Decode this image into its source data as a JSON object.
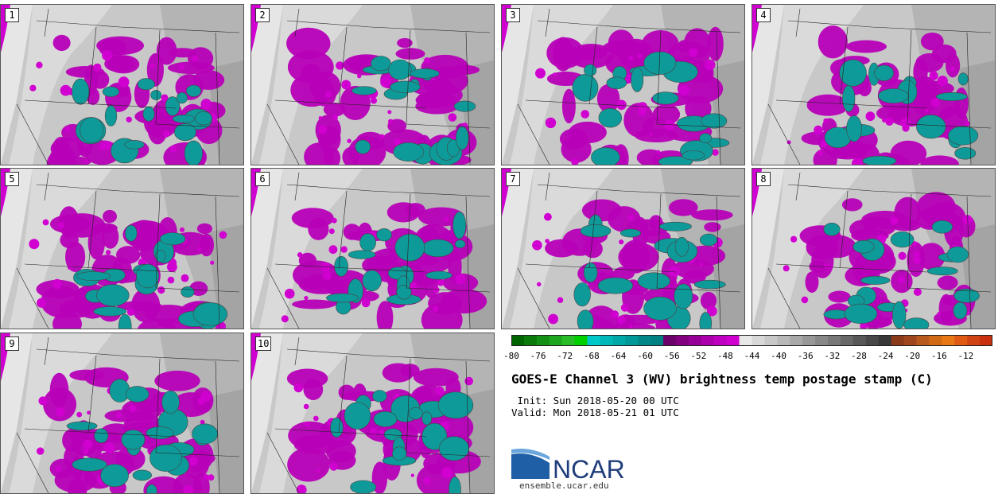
{
  "stamps": [
    {
      "label": "1"
    },
    {
      "label": "2"
    },
    {
      "label": "3"
    },
    {
      "label": "4"
    },
    {
      "label": "5"
    },
    {
      "label": "6"
    },
    {
      "label": "7"
    },
    {
      "label": "8"
    },
    {
      "label": "9"
    },
    {
      "label": "10"
    }
  ],
  "colorbar": {
    "ticks": [
      "-80",
      "-76",
      "-72",
      "-68",
      "-64",
      "-60",
      "-56",
      "-52",
      "-48",
      "-44",
      "-40",
      "-36",
      "-32",
      "-28",
      "-24",
      "-20",
      "-16",
      "-12"
    ],
    "colors": [
      "#006400",
      "#0a7a0a",
      "#149014",
      "#1ea61e",
      "#28bc28",
      "#00d000",
      "#00c8c8",
      "#00b8b8",
      "#00a8a8",
      "#009898",
      "#008888",
      "#008080",
      "#6b006b",
      "#800080",
      "#960096",
      "#ab00ab",
      "#c000c0",
      "#d000d0",
      "#e8e8e8",
      "#d8d8d8",
      "#c8c8c8",
      "#b8b8b8",
      "#a8a8a8",
      "#989898",
      "#888888",
      "#787878",
      "#686868",
      "#585858",
      "#484848",
      "#383838",
      "#8b3a1a",
      "#a0461e",
      "#b85a1e",
      "#d06a14",
      "#e87814",
      "#e05a14",
      "#d04414",
      "#c83010"
    ]
  },
  "title": "GOES-E Channel 3 (WV) brightness temp postage stamp (C)",
  "init": " Init: Sun 2018-05-20 00 UTC",
  "valid": "Valid: Mon 2018-05-21 01 UTC",
  "logo": {
    "text": "NCAR",
    "url": "ensemble.ucar.edu",
    "color": "#1f3d7a"
  }
}
